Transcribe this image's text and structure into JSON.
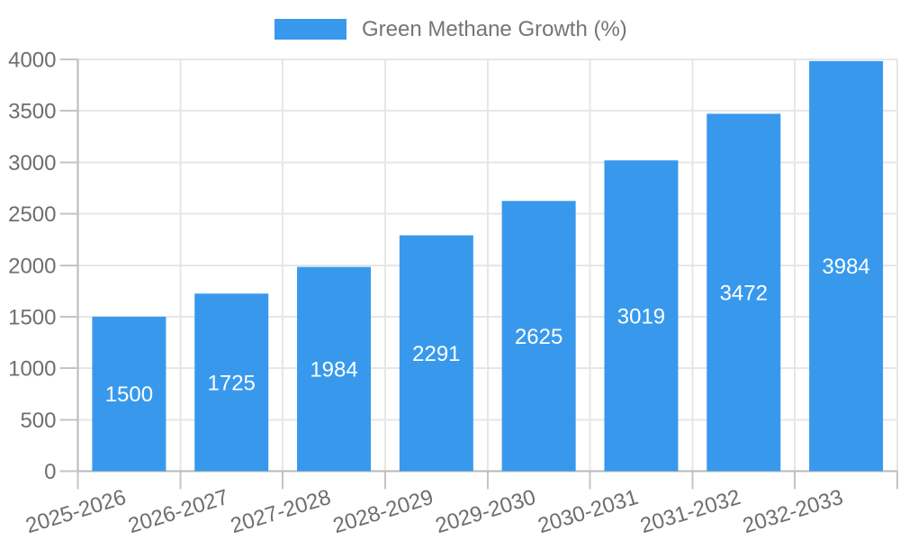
{
  "legend": {
    "label": "Green Methane Growth (%)"
  },
  "colors": {
    "bar": "#3899ec",
    "bar_value_label": "#ffffff",
    "axis_tick_text": "#6e6e6e",
    "legend_text": "#757575",
    "gridline": "#e6e6e6",
    "axis_line": "#b9b9b9",
    "tick_mark": "#c4c4c4",
    "background": "#ffffff"
  },
  "chart_data": {
    "type": "bar",
    "title": "Green Methane Growth (%)",
    "categories": [
      "2025-2026",
      "2026-2027",
      "2027-2028",
      "2028-2029",
      "2029-2030",
      "2030-2031",
      "2031-2032",
      "2032-2033"
    ],
    "values": [
      1500,
      1725,
      1984,
      2291,
      2625,
      3019,
      3472,
      3984
    ],
    "xlabel": "",
    "ylabel": "",
    "ylim": [
      0,
      4000
    ],
    "ytick_step": 500,
    "ytick_labels": [
      "0",
      "500",
      "1000",
      "1500",
      "2000",
      "2500",
      "3000",
      "3500",
      "4000"
    ],
    "grid": true,
    "legend_position": "top",
    "x_label_rotation_deg": -17,
    "bar_value_labels": "inside-center"
  }
}
